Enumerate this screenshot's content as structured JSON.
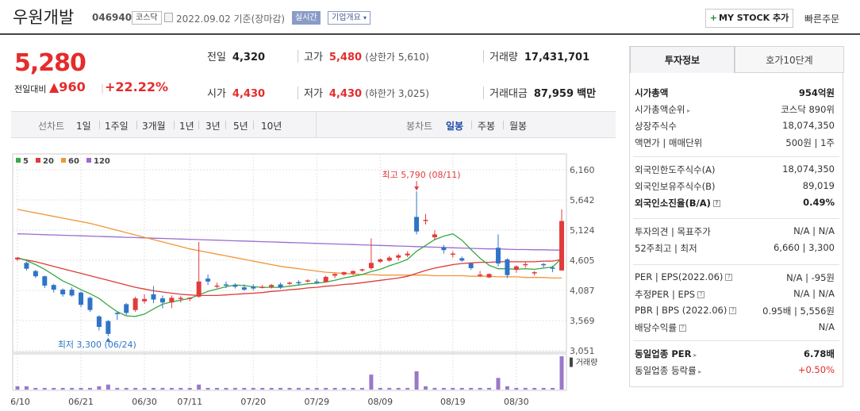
{
  "header": {
    "name": "우원개발",
    "code": "046940",
    "market_tag": "코스닥",
    "date": "2022.09.02 기준(장마감)",
    "live_label": "실시간",
    "info_label": "기업개요",
    "mystock_label": "MY STOCK 추가",
    "quick_order_label": "빠른주문"
  },
  "price": {
    "current": "5,280",
    "change_label": "전일대비",
    "change_value": "▲960",
    "change_percent": "+22.22%"
  },
  "summary": {
    "prev_close": {
      "label": "전일",
      "value": "4,320"
    },
    "high": {
      "label": "고가",
      "value": "5,480",
      "limit_label": "상한가",
      "limit_value": "5,610"
    },
    "volume": {
      "label": "거래량",
      "value": "17,431,701"
    },
    "open": {
      "label": "시가",
      "value": "4,430"
    },
    "low": {
      "label": "저가",
      "value": "4,430",
      "limit_label": "하한가",
      "limit_value": "3,025"
    },
    "amount": {
      "label": "거래대금",
      "value": "87,959",
      "unit": "백만"
    }
  },
  "period_bar": {
    "line_label": "선차트",
    "line_periods": [
      "1일",
      "1주일",
      "3개월",
      "1년",
      "3년",
      "5년",
      "10년"
    ],
    "candle_label": "봉차트",
    "candle_periods": [
      "일봉",
      "주봉",
      "월봉"
    ],
    "active_candle": "일봉"
  },
  "chart_data": {
    "type": "candlestick",
    "ma_legend": [
      {
        "name": "5",
        "color": "#3aa845"
      },
      {
        "name": "20",
        "color": "#e03a3a"
      },
      {
        "name": "60",
        "color": "#f0963a"
      },
      {
        "name": "120",
        "color": "#9b6cd0"
      }
    ],
    "y_ticks": [
      "6,160",
      "5,642",
      "5,124",
      "4,605",
      "4,087",
      "3,569",
      "3,051"
    ],
    "y_tick_values": [
      6160,
      5642,
      5124,
      4605,
      4087,
      3569,
      3051
    ],
    "x_ticks": [
      "06/10",
      "06/21",
      "06/30",
      "07/11",
      "07/20",
      "07/29",
      "08/09",
      "08/19",
      "08/30"
    ],
    "x_tick_index": [
      0,
      7,
      14,
      19,
      26,
      33,
      40,
      48,
      55
    ],
    "high_annotation": "최고 5,790 (08/11)",
    "low_annotation": "최저 3,300 (06/24)",
    "volume_label": "거래량",
    "candles": [
      [
        4620,
        4660,
        4590,
        4650
      ],
      [
        4560,
        4580,
        4430,
        4460
      ],
      [
        4420,
        4440,
        4300,
        4330
      ],
      [
        4330,
        4340,
        4130,
        4170
      ],
      [
        4180,
        4200,
        4050,
        4100
      ],
      [
        4100,
        4120,
        3980,
        4020
      ],
      [
        4100,
        4140,
        3980,
        4000
      ],
      [
        4050,
        4070,
        3800,
        3840
      ],
      [
        3960,
        3980,
        3720,
        3750
      ],
      [
        3640,
        3660,
        3400,
        3460
      ],
      [
        3560,
        3580,
        3300,
        3340
      ],
      [
        3700,
        3720,
        3580,
        3690
      ],
      [
        3850,
        3870,
        3660,
        3700
      ],
      [
        3750,
        3980,
        3720,
        3950
      ],
      [
        3900,
        4020,
        3860,
        3940
      ],
      [
        4020,
        4160,
        3870,
        3930
      ],
      [
        3950,
        4000,
        3780,
        3880
      ],
      [
        3880,
        4000,
        3780,
        3960
      ],
      [
        3950,
        3990,
        3880,
        3960
      ],
      [
        3950,
        3970,
        3900,
        3960
      ],
      [
        3980,
        4920,
        3960,
        4240
      ],
      [
        4290,
        4360,
        4180,
        4240
      ],
      [
        4150,
        4220,
        4130,
        4170
      ],
      [
        4190,
        4240,
        4130,
        4180
      ],
      [
        4180,
        4210,
        4120,
        4150
      ],
      [
        4140,
        4190,
        4080,
        4100
      ],
      [
        4150,
        4190,
        4090,
        4120
      ],
      [
        4140,
        4180,
        4120,
        4150
      ],
      [
        4150,
        4200,
        4120,
        4180
      ],
      [
        4190,
        4220,
        4110,
        4140
      ],
      [
        4200,
        4240,
        4180,
        4220
      ],
      [
        4230,
        4260,
        4170,
        4210
      ],
      [
        4250,
        4280,
        4220,
        4260
      ],
      [
        4240,
        4280,
        4200,
        4230
      ],
      [
        4230,
        4340,
        4220,
        4320
      ],
      [
        4340,
        4380,
        4300,
        4370
      ],
      [
        4360,
        4410,
        4340,
        4400
      ],
      [
        4380,
        4430,
        4350,
        4420
      ],
      [
        4450,
        4460,
        4410,
        4450
      ],
      [
        4470,
        4980,
        4440,
        4560
      ],
      [
        4580,
        4640,
        4560,
        4620
      ],
      [
        4600,
        4680,
        4580,
        4650
      ],
      [
        4650,
        4720,
        4600,
        4690
      ],
      [
        4690,
        4760,
        4660,
        4720
      ],
      [
        5350,
        5790,
        5050,
        5100
      ],
      [
        5300,
        5400,
        5220,
        5300
      ],
      [
        5000,
        5120,
        4950,
        5050
      ],
      [
        4830,
        4870,
        4720,
        4780
      ],
      [
        4700,
        4760,
        4650,
        4720
      ],
      [
        4640,
        4670,
        4580,
        4600
      ],
      [
        4550,
        4560,
        4440,
        4470
      ],
      [
        4350,
        4420,
        4320,
        4360
      ],
      [
        4310,
        4380,
        4300,
        4370
      ],
      [
        4820,
        5050,
        4500,
        4550
      ],
      [
        4620,
        4640,
        4300,
        4350
      ],
      [
        4440,
        4520,
        4390,
        4500
      ],
      [
        4530,
        4580,
        4480,
        4540
      ],
      [
        4380,
        4420,
        4340,
        4400
      ],
      [
        4540,
        4560,
        4480,
        4520
      ],
      [
        4480,
        4510,
        4400,
        4460
      ],
      [
        4430,
        5480,
        4430,
        5280
      ]
    ],
    "volumes": [
      2,
      2,
      1,
      1,
      1,
      1,
      1,
      1,
      1,
      2,
      3,
      1,
      1,
      1,
      1,
      1,
      1,
      1,
      1,
      1,
      3,
      1,
      1,
      1,
      1,
      1,
      1,
      1,
      1,
      1,
      1,
      1,
      1,
      1,
      1,
      1,
      1,
      1,
      1,
      9,
      1,
      1,
      1,
      1,
      11,
      2,
      1,
      1,
      1,
      1,
      1,
      1,
      1,
      7,
      2,
      1,
      1,
      1,
      1,
      1,
      20
    ],
    "ma5": [
      4650,
      4600,
      4530,
      4450,
      4350,
      4250,
      4180,
      4100,
      4030,
      3950,
      3830,
      3720,
      3650,
      3640,
      3680,
      3770,
      3850,
      3890,
      3920,
      3950,
      4010,
      4070,
      4110,
      4150,
      4180,
      4170,
      4150,
      4140,
      4140,
      4140,
      4160,
      4180,
      4200,
      4210,
      4230,
      4260,
      4300,
      4330,
      4360,
      4410,
      4450,
      4510,
      4560,
      4620,
      4760,
      4860,
      4960,
      5020,
      5060,
      4950,
      4790,
      4640,
      4520,
      4460,
      4460,
      4450,
      4460,
      4450,
      4470,
      4490,
      4640
    ],
    "ma20": [
      4640,
      4610,
      4580,
      4540,
      4500,
      4460,
      4420,
      4380,
      4340,
      4300,
      4260,
      4220,
      4180,
      4140,
      4110,
      4080,
      4060,
      4040,
      4020,
      4010,
      4000,
      4000,
      4000,
      4010,
      4020,
      4030,
      4040,
      4050,
      4070,
      4080,
      4100,
      4110,
      4130,
      4140,
      4160,
      4170,
      4190,
      4200,
      4220,
      4240,
      4260,
      4280,
      4300,
      4330,
      4380,
      4430,
      4470,
      4500,
      4530,
      4550,
      4560,
      4570,
      4570,
      4580,
      4580,
      4580,
      4580,
      4580,
      4590,
      4590,
      4620
    ],
    "ma60": [
      5480,
      5450,
      5420,
      5390,
      5360,
      5330,
      5300,
      5270,
      5240,
      5200,
      5160,
      5120,
      5080,
      5040,
      5000,
      4960,
      4920,
      4880,
      4840,
      4800,
      4770,
      4740,
      4710,
      4680,
      4650,
      4620,
      4590,
      4560,
      4530,
      4500,
      4480,
      4460,
      4440,
      4420,
      4400,
      4390,
      4380,
      4370,
      4360,
      4360,
      4350,
      4350,
      4350,
      4350,
      4350,
      4350,
      4340,
      4340,
      4340,
      4340,
      4330,
      4330,
      4330,
      4320,
      4320,
      4320,
      4310,
      4310,
      4310,
      4300,
      4300
    ],
    "ma120": [
      5060,
      5055,
      5050,
      5045,
      5040,
      5035,
      5030,
      5025,
      5020,
      5015,
      5010,
      5005,
      5000,
      4995,
      4990,
      4985,
      4980,
      4975,
      4970,
      4965,
      4960,
      4955,
      4950,
      4945,
      4940,
      4935,
      4930,
      4925,
      4920,
      4915,
      4910,
      4905,
      4900,
      4895,
      4890,
      4885,
      4880,
      4875,
      4870,
      4865,
      4860,
      4855,
      4850,
      4845,
      4840,
      4835,
      4830,
      4825,
      4820,
      4815,
      4810,
      4805,
      4800,
      4800,
      4795,
      4790,
      4790,
      4785,
      4785,
      4780,
      4780
    ]
  },
  "side": {
    "tab_active": "투자정보",
    "tab_other": "호가10단계",
    "group1": [
      {
        "k": "시가총액",
        "v": "954억원",
        "bold": true
      },
      {
        "k": "시가총액순위",
        "v": "코스닥 890위",
        "arrow": true
      },
      {
        "k": "상장주식수",
        "v": "18,074,350"
      },
      {
        "k": "액면가 | 매매단위",
        "v": "500원 | 1주"
      }
    ],
    "group2": [
      {
        "k": "외국인한도주식수(A)",
        "v": "18,074,350"
      },
      {
        "k": "외국인보유주식수(B)",
        "v": "89,019"
      },
      {
        "k": "외국인소진율(B/A)",
        "v": "0.49%",
        "bold": true,
        "help": true
      }
    ],
    "group3": [
      {
        "k": "투자의견 | 목표주가",
        "v": "N/A | N/A"
      },
      {
        "k": "52주최고 | 최저",
        "v": "6,660 | 3,300"
      }
    ],
    "group4": [
      {
        "k": "PER | EPS(2022.06)",
        "v": "N/A | -95원",
        "help": true
      },
      {
        "k": "추정PER | EPS",
        "v": "N/A | N/A",
        "help": true
      },
      {
        "k": "PBR | BPS (2022.06)",
        "v": "0.95배 | 5,556원",
        "help": true
      },
      {
        "k": "배당수익률",
        "v": "N/A",
        "help": true
      }
    ],
    "group5": [
      {
        "k": "동일업종 PER",
        "v": "6.78배",
        "bold": true,
        "arrow": true
      },
      {
        "k": "동일업종 등락률",
        "v": "+0.50%",
        "red": true,
        "arrow": true
      }
    ]
  }
}
